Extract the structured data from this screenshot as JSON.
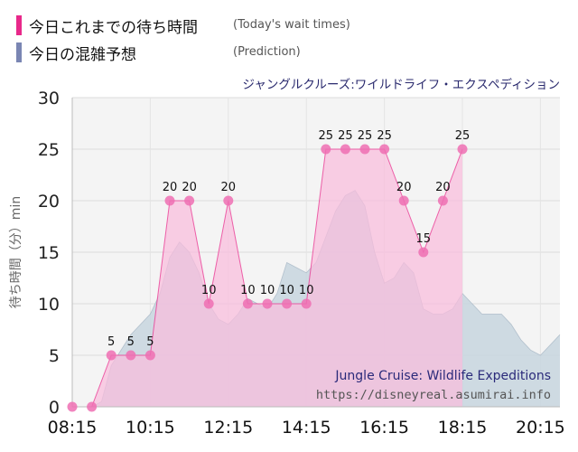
{
  "legend": {
    "actual": {
      "label": "今日これまでの待ち時間",
      "sublabel": "(Today's wait times)",
      "color": "#e8288a"
    },
    "prediction": {
      "label": "今日の混雑予想",
      "sublabel": "(Prediction)",
      "color": "#7a86b3"
    }
  },
  "chart_data": {
    "type": "area",
    "title": "ジャングルクルーズ:ワイルドライフ・エクスペディション",
    "ylabel": "待ち時間（分）min",
    "xlabel": "",
    "ylim": [
      0,
      30
    ],
    "yticks": [
      0,
      5,
      10,
      15,
      20,
      25,
      30
    ],
    "xlim": [
      "08:15",
      "20:45"
    ],
    "xticks": [
      "08:15",
      "10:15",
      "12:15",
      "14:15",
      "16:15",
      "18:15",
      "20:15"
    ],
    "grid": true,
    "annotation": {
      "line1": "Jungle Cruise: Wildlife Expeditions",
      "line2": "https://disneyreal.asumirai.info"
    },
    "series": [
      {
        "key": "actual",
        "color": "#e8288a",
        "fill": "#f9bcdc",
        "points": [
          {
            "x": "08:15",
            "y": 0
          },
          {
            "x": "08:45",
            "y": 0
          },
          {
            "x": "09:15",
            "y": 5
          },
          {
            "x": "09:45",
            "y": 5
          },
          {
            "x": "10:15",
            "y": 5
          },
          {
            "x": "10:45",
            "y": 20
          },
          {
            "x": "11:15",
            "y": 20
          },
          {
            "x": "11:45",
            "y": 10
          },
          {
            "x": "12:15",
            "y": 20
          },
          {
            "x": "12:45",
            "y": 10
          },
          {
            "x": "13:15",
            "y": 10
          },
          {
            "x": "13:45",
            "y": 10
          },
          {
            "x": "14:15",
            "y": 10
          },
          {
            "x": "14:45",
            "y": 25
          },
          {
            "x": "15:15",
            "y": 25
          },
          {
            "x": "15:45",
            "y": 25
          },
          {
            "x": "16:15",
            "y": 25
          },
          {
            "x": "16:45",
            "y": 20
          },
          {
            "x": "17:15",
            "y": 15
          },
          {
            "x": "17:45",
            "y": 20
          },
          {
            "x": "18:15",
            "y": 25
          }
        ]
      },
      {
        "key": "prediction",
        "color": "#9fb0c0",
        "fill": "#c7d5de",
        "points": [
          {
            "x": "08:15",
            "y": 0
          },
          {
            "x": "08:45",
            "y": 0
          },
          {
            "x": "09:00",
            "y": 0.5
          },
          {
            "x": "09:15",
            "y": 4
          },
          {
            "x": "09:45",
            "y": 7
          },
          {
            "x": "10:15",
            "y": 9
          },
          {
            "x": "10:30",
            "y": 11
          },
          {
            "x": "10:45",
            "y": 14.5
          },
          {
            "x": "11:00",
            "y": 16
          },
          {
            "x": "11:15",
            "y": 15
          },
          {
            "x": "11:30",
            "y": 13
          },
          {
            "x": "11:45",
            "y": 10
          },
          {
            "x": "12:00",
            "y": 8.5
          },
          {
            "x": "12:15",
            "y": 8
          },
          {
            "x": "12:30",
            "y": 9
          },
          {
            "x": "12:45",
            "y": 10.5
          },
          {
            "x": "13:00",
            "y": 10
          },
          {
            "x": "13:15",
            "y": 9.5
          },
          {
            "x": "13:30",
            "y": 11
          },
          {
            "x": "13:45",
            "y": 14
          },
          {
            "x": "14:00",
            "y": 13.5
          },
          {
            "x": "14:15",
            "y": 13
          },
          {
            "x": "14:30",
            "y": 14
          },
          {
            "x": "14:45",
            "y": 16.5
          },
          {
            "x": "15:00",
            "y": 19
          },
          {
            "x": "15:15",
            "y": 20.5
          },
          {
            "x": "15:30",
            "y": 21
          },
          {
            "x": "15:45",
            "y": 19.5
          },
          {
            "x": "16:00",
            "y": 15
          },
          {
            "x": "16:15",
            "y": 12
          },
          {
            "x": "16:30",
            "y": 12.5
          },
          {
            "x": "16:45",
            "y": 14
          },
          {
            "x": "17:00",
            "y": 13
          },
          {
            "x": "17:15",
            "y": 9.5
          },
          {
            "x": "17:30",
            "y": 9
          },
          {
            "x": "17:45",
            "y": 9
          },
          {
            "x": "18:00",
            "y": 9.5
          },
          {
            "x": "18:15",
            "y": 11
          },
          {
            "x": "18:30",
            "y": 10
          },
          {
            "x": "18:45",
            "y": 9
          },
          {
            "x": "19:00",
            "y": 9
          },
          {
            "x": "19:15",
            "y": 9
          },
          {
            "x": "19:30",
            "y": 8
          },
          {
            "x": "19:45",
            "y": 6.5
          },
          {
            "x": "20:00",
            "y": 5.5
          },
          {
            "x": "20:15",
            "y": 5
          },
          {
            "x": "20:30",
            "y": 6
          },
          {
            "x": "20:45",
            "y": 7
          }
        ]
      }
    ]
  }
}
